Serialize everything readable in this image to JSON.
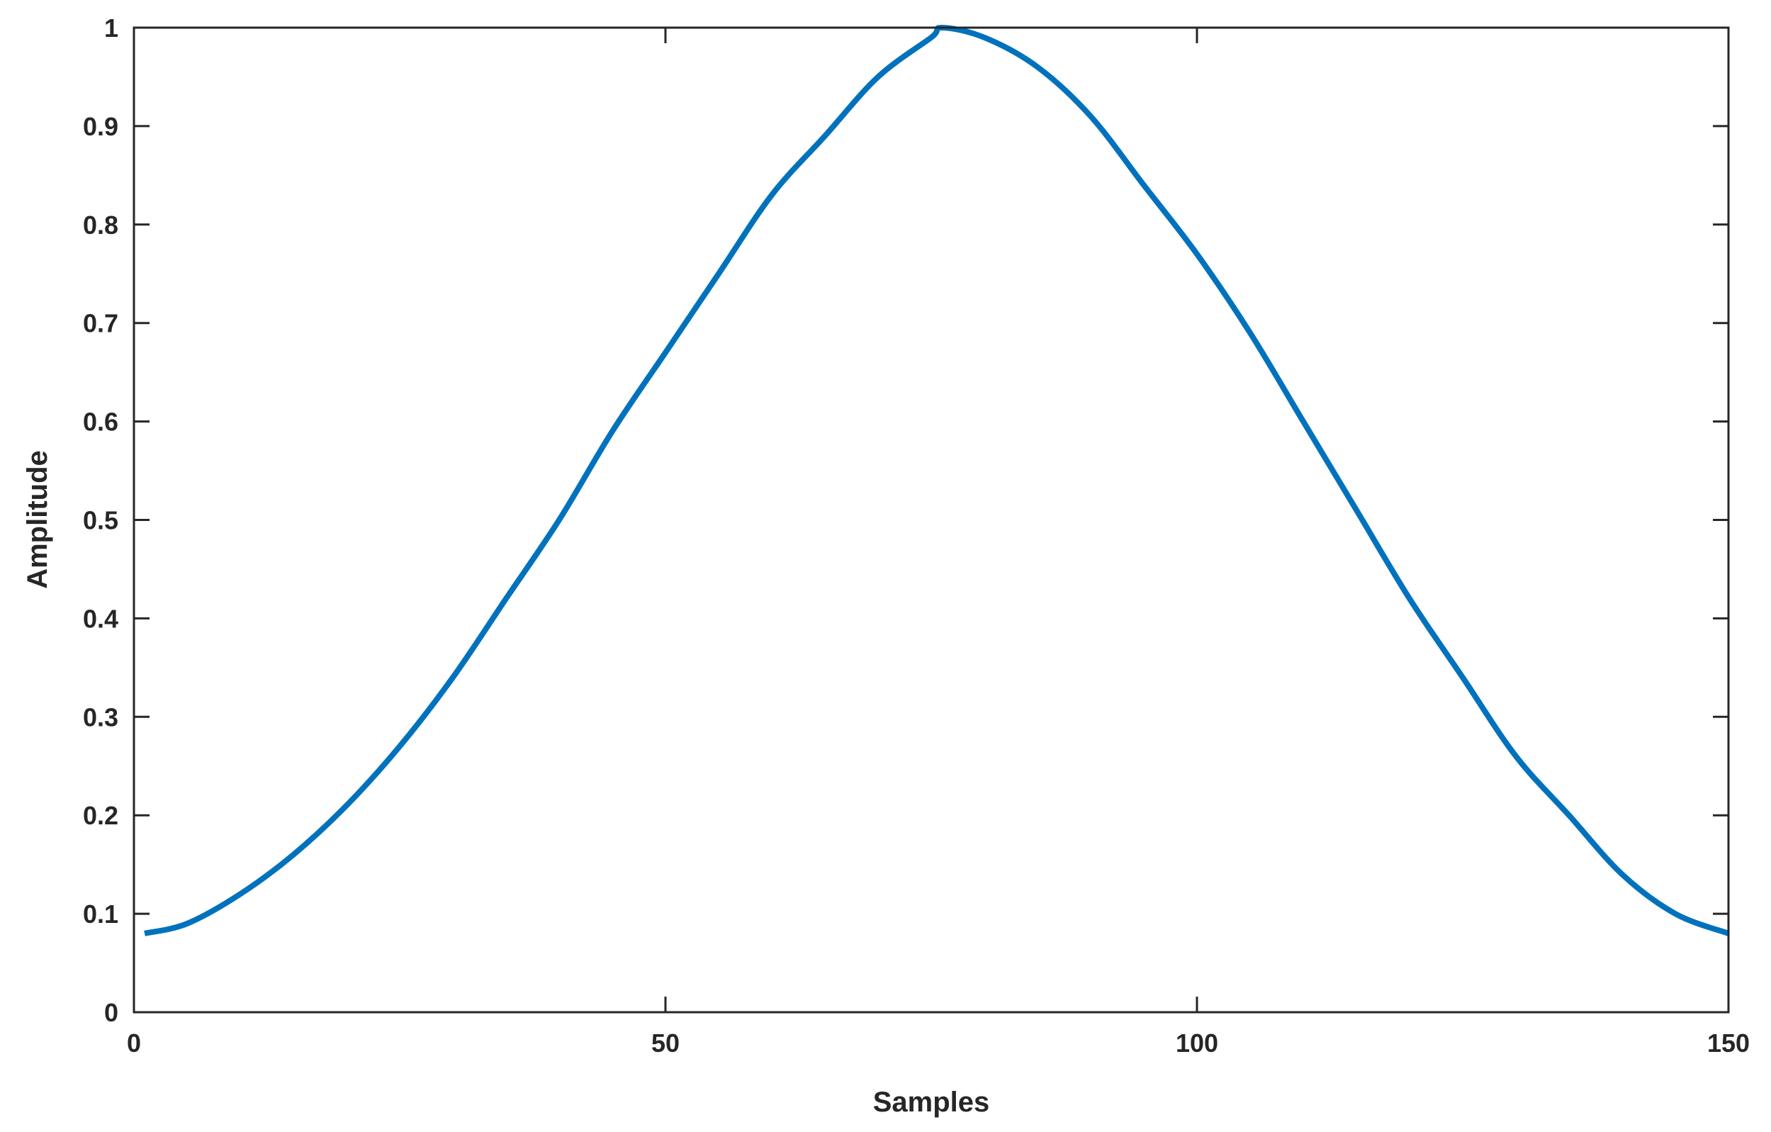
{
  "chart_data": {
    "type": "line",
    "title": "",
    "xlabel": "Samples",
    "ylabel": "Amplitude",
    "xlim": [
      0,
      150
    ],
    "ylim": [
      0,
      1
    ],
    "xticks": [
      0,
      50,
      100,
      150
    ],
    "xtick_labels": [
      "0",
      "50",
      "100",
      "150"
    ],
    "yticks": [
      0,
      0.1,
      0.2,
      0.3,
      0.4,
      0.5,
      0.6,
      0.7,
      0.8,
      0.9,
      1
    ],
    "ytick_labels": [
      "0",
      "0.1",
      "0.2",
      "0.3",
      "0.4",
      "0.5",
      "0.6",
      "0.7",
      "0.8",
      "0.9",
      "1"
    ],
    "grid": false,
    "legend": "none",
    "series": [
      {
        "color": "#0072BD",
        "x": [
          1,
          5,
          10,
          15,
          20,
          25,
          30,
          35,
          40,
          45,
          50,
          55,
          60,
          65,
          70,
          75,
          76,
          80,
          85,
          90,
          95,
          100,
          105,
          110,
          115,
          120,
          125,
          130,
          135,
          140,
          145,
          150
        ],
        "y": [
          0.08,
          0.09,
          0.12,
          0.16,
          0.21,
          0.27,
          0.34,
          0.42,
          0.5,
          0.59,
          0.67,
          0.75,
          0.83,
          0.89,
          0.95,
          0.99,
          1.0,
          0.99,
          0.96,
          0.91,
          0.84,
          0.77,
          0.69,
          0.6,
          0.51,
          0.42,
          0.34,
          0.26,
          0.2,
          0.14,
          0.1,
          0.08
        ]
      }
    ]
  }
}
